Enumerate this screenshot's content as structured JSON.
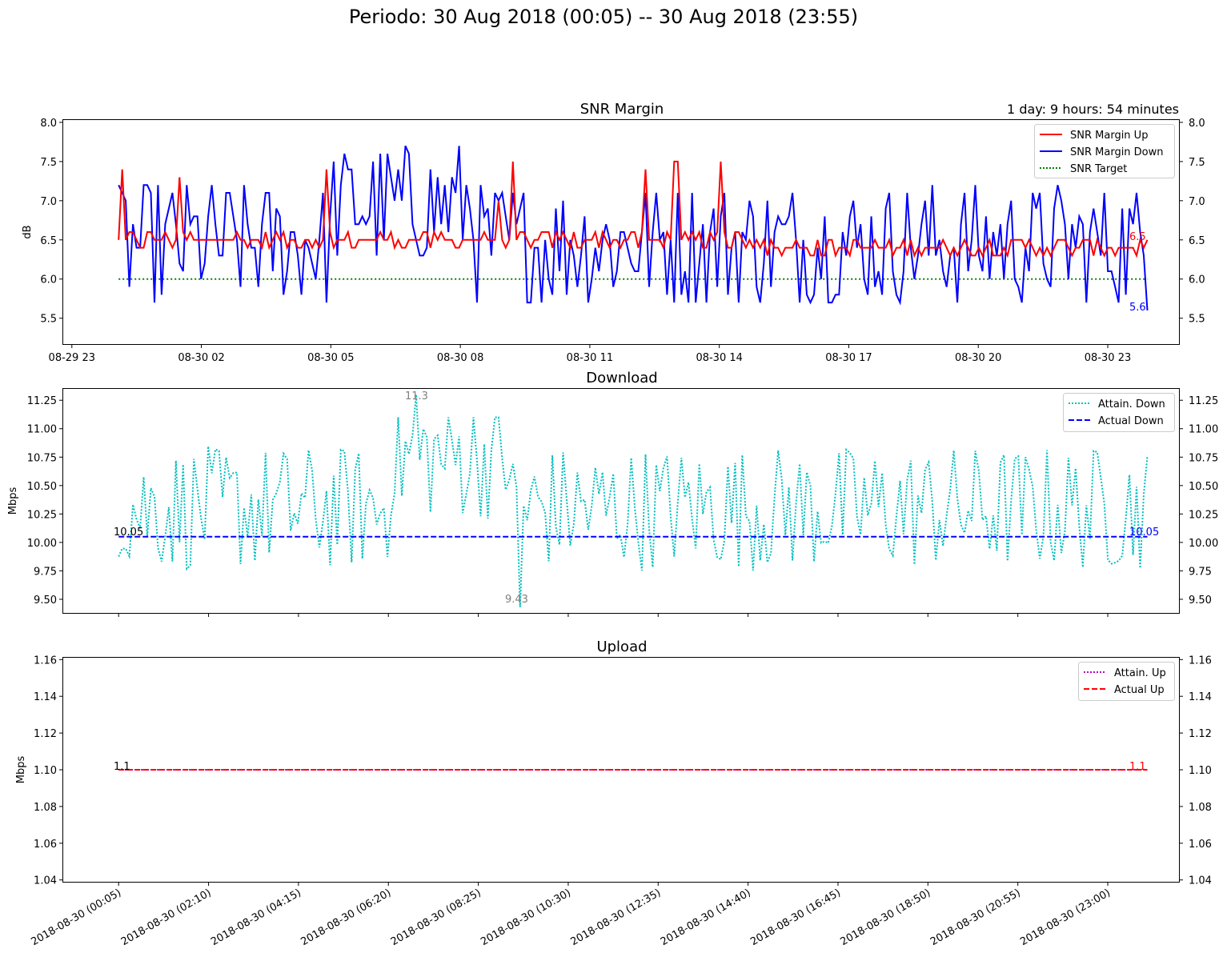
{
  "suptitle": "Periodo: 30 Aug 2018 (00:05) -- 30 Aug 2018 (23:55)",
  "colors": {
    "snr_up": "#ff0000",
    "snr_down": "#0000ff",
    "snr_target": "#008000",
    "attain_down": "#00bfbf",
    "actual_down": "#0000ff",
    "attain_up": "#bf00bf",
    "actual_up": "#ff0000",
    "min_max_label": "#808080"
  },
  "chart_data": [
    {
      "id": "snr",
      "type": "line",
      "title": "SNR Margin",
      "subtitle": "1 day: 9 hours: 54 minutes",
      "ylabel": "dB",
      "xlabel": "",
      "x_unit": "hours",
      "xlim": [
        -1.2,
        24.65
      ],
      "ylim": [
        5.17,
        8.03
      ],
      "yticks": [
        5.5,
        6.0,
        6.5,
        7.0,
        7.5,
        8.0
      ],
      "ytick_labels": [
        "5.5",
        "6.0",
        "6.5",
        "7.0",
        "7.5",
        "8.0"
      ],
      "xticks": [
        -1,
        2,
        5,
        8,
        11,
        14,
        17,
        20,
        23
      ],
      "xtick_labels": [
        "08-29 23",
        "08-30 02",
        "08-30 05",
        "08-30 08",
        "08-30 11",
        "08-30 14",
        "08-30 17",
        "08-30 20",
        "08-30 23"
      ],
      "legend": [
        "SNR Margin Up",
        "SNR Margin Down",
        "SNR Target"
      ],
      "end_labels": [
        "6.5",
        "5.6"
      ],
      "series": [
        {
          "name": "SNR Margin Up",
          "style": "solid",
          "color_key": "snr_up",
          "end_value": 6.5
        },
        {
          "name": "SNR Margin Down",
          "style": "solid",
          "color_key": "snr_down",
          "end_value": 5.6
        },
        {
          "name": "SNR Target",
          "style": "dotted",
          "color_key": "snr_target",
          "values": [
            6.0,
            6.0
          ],
          "x": [
            0.083,
            23.917
          ]
        }
      ]
    },
    {
      "id": "download",
      "type": "line",
      "title": "Download",
      "ylabel": "Mbps",
      "xlim": [
        -1.2,
        24.65
      ],
      "ylim": [
        9.38,
        11.35
      ],
      "yticks": [
        9.5,
        9.75,
        10.0,
        10.25,
        10.5,
        10.75,
        11.0,
        11.25
      ],
      "ytick_labels": [
        "9.50",
        "9.75",
        "10.00",
        "10.25",
        "10.50",
        "10.75",
        "11.00",
        "11.25"
      ],
      "legend": [
        "Attain. Down",
        "Actual Down"
      ],
      "annotations": {
        "max": "11.3",
        "min": "9.43",
        "start": "10.05",
        "end": "10.05"
      },
      "series": [
        {
          "name": "Attain. Down",
          "style": "dotted",
          "color_key": "attain_down",
          "max": 11.3,
          "min": 9.43
        },
        {
          "name": "Actual Down",
          "style": "dashed",
          "color_key": "actual_down",
          "values": [
            10.05,
            10.05
          ],
          "x": [
            0.083,
            23.917
          ]
        }
      ]
    },
    {
      "id": "upload",
      "type": "line",
      "title": "Upload",
      "ylabel": "Mbps",
      "xlim": [
        -1.2,
        24.65
      ],
      "ylim": [
        1.039,
        1.161
      ],
      "yticks": [
        1.04,
        1.06,
        1.08,
        1.1,
        1.12,
        1.14,
        1.16
      ],
      "ytick_labels": [
        "1.04",
        "1.06",
        "1.08",
        "1.10",
        "1.12",
        "1.14",
        "1.16"
      ],
      "xticks": [
        0.083,
        2.167,
        4.25,
        6.333,
        8.417,
        10.5,
        12.583,
        14.667,
        16.75,
        18.833,
        20.917,
        23.0
      ],
      "xtick_labels": [
        "2018-08-30 (00:05)",
        "2018-08-30 (02:10)",
        "2018-08-30 (04:15)",
        "2018-08-30 (06:20)",
        "2018-08-30 (08:25)",
        "2018-08-30 (10:30)",
        "2018-08-30 (12:35)",
        "2018-08-30 (14:40)",
        "2018-08-30 (16:45)",
        "2018-08-30 (18:50)",
        "2018-08-30 (20:55)",
        "2018-08-30 (23:00)"
      ],
      "legend": [
        "Attain. Up",
        "Actual Up"
      ],
      "annotations": {
        "start": "1.1",
        "end": "1.1"
      },
      "series": [
        {
          "name": "Attain. Up",
          "style": "dotted",
          "color_key": "attain_up",
          "values": [
            1.1,
            1.1
          ],
          "x": [
            0.083,
            23.917
          ]
        },
        {
          "name": "Actual Up",
          "style": "dashed",
          "color_key": "actual_up",
          "values": [
            1.1,
            1.1
          ],
          "x": [
            0.083,
            23.917
          ]
        }
      ]
    }
  ]
}
